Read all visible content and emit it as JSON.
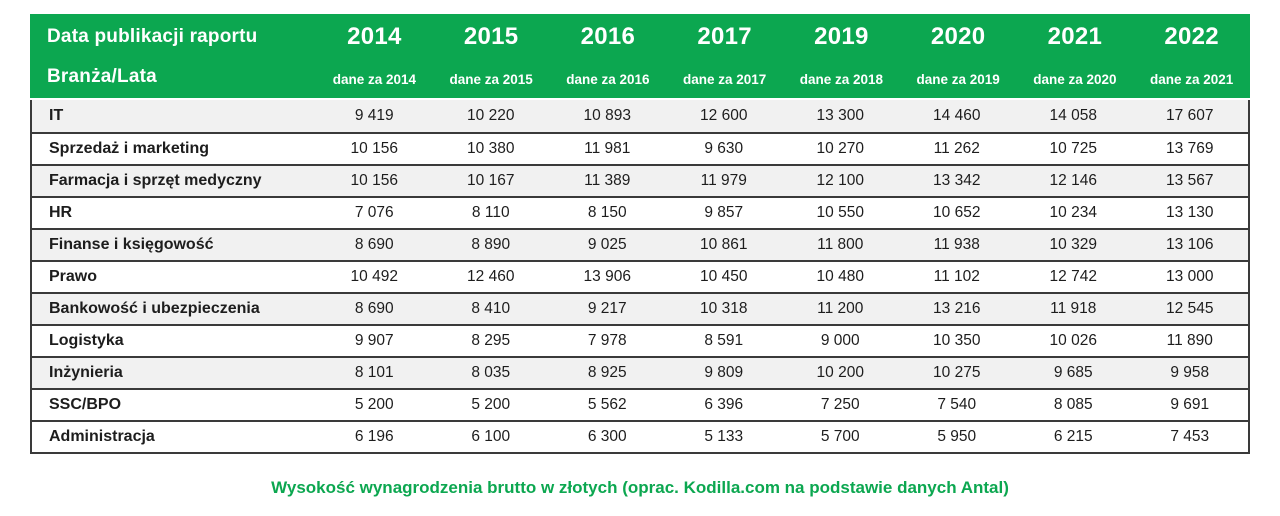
{
  "header": {
    "title_line1": "Data publikacji raportu",
    "title_line2": "Branża/Lata",
    "columns": [
      {
        "year": "2014",
        "subtitle": "dane za 2014"
      },
      {
        "year": "2015",
        "subtitle": "dane za 2015"
      },
      {
        "year": "2016",
        "subtitle": "dane za 2016"
      },
      {
        "year": "2017",
        "subtitle": "dane za 2017"
      },
      {
        "year": "2019",
        "subtitle": "dane za 2018"
      },
      {
        "year": "2020",
        "subtitle": "dane za 2019"
      },
      {
        "year": "2021",
        "subtitle": "dane za 2020"
      },
      {
        "year": "2022",
        "subtitle": "dane za 2021"
      }
    ]
  },
  "rows": [
    {
      "label": "IT",
      "values": [
        "9 419",
        "10 220",
        "10 893",
        "12 600",
        "13 300",
        "14 460",
        "14 058",
        "17 607"
      ]
    },
    {
      "label": "Sprzedaż i marketing",
      "values": [
        "10 156",
        "10 380",
        "11 981",
        "9 630",
        "10 270",
        "11 262",
        "10 725",
        "13 769"
      ]
    },
    {
      "label": "Farmacja i sprzęt medyczny",
      "values": [
        "10 156",
        "10 167",
        "11 389",
        "11 979",
        "12 100",
        "13 342",
        "12 146",
        "13 567"
      ]
    },
    {
      "label": "HR",
      "values": [
        "7 076",
        "8 110",
        "8 150",
        "9 857",
        "10 550",
        "10 652",
        "10 234",
        "13 130"
      ]
    },
    {
      "label": "Finanse i księgowość",
      "values": [
        "8 690",
        "8 890",
        "9 025",
        "10 861",
        "11 800",
        "11 938",
        "10 329",
        "13 106"
      ]
    },
    {
      "label": "Prawo",
      "values": [
        "10 492",
        "12 460",
        "13 906",
        "10 450",
        "10 480",
        "11 102",
        "12 742",
        "13 000"
      ]
    },
    {
      "label": "Bankowość i ubezpieczenia",
      "values": [
        "8 690",
        "8 410",
        "9 217",
        "10 318",
        "11 200",
        "13 216",
        "11 918",
        "12 545"
      ]
    },
    {
      "label": "Logistyka",
      "values": [
        "9 907",
        "8 295",
        "7 978",
        "8 591",
        "9 000",
        "10 350",
        "10 026",
        "11 890"
      ]
    },
    {
      "label": "Inżynieria",
      "values": [
        "8 101",
        "8 035",
        "8 925",
        "9 809",
        "10 200",
        "10 275",
        "9 685",
        "9 958"
      ]
    },
    {
      "label": "SSC/BPO",
      "values": [
        "5 200",
        "5 200",
        "5 562",
        "6 396",
        "7 250",
        "7 540",
        "8 085",
        "9 691"
      ]
    },
    {
      "label": "Administracja",
      "values": [
        "6 196",
        "6 100",
        "6 300",
        "5 133",
        "5 700",
        "5 950",
        "6 215",
        "7 453"
      ]
    }
  ],
  "caption": "Wysokość wynagrodzenia brutto w złotych (oprac. Kodilla.com na podstawie danych Antal)",
  "colors": {
    "brand_green": "#0CA750",
    "row_stripe": "#F1F1F1",
    "border_dark": "#3A3A3A",
    "header_text": "#FFFFFF"
  },
  "chart_data": {
    "type": "table",
    "title": "Wysokość wynagrodzenia brutto w złotych (oprac. Kodilla.com na podstawie danych Antal)",
    "corner_header": [
      "Data publikacji raportu",
      "Branża/Lata"
    ],
    "publication_years": [
      2014,
      2015,
      2016,
      2017,
      2019,
      2020,
      2021,
      2022
    ],
    "data_for_years": [
      2014,
      2015,
      2016,
      2017,
      2018,
      2019,
      2020,
      2021
    ],
    "series": [
      {
        "name": "IT",
        "values": [
          9419,
          10220,
          10893,
          12600,
          13300,
          14460,
          14058,
          17607
        ]
      },
      {
        "name": "Sprzedaż i marketing",
        "values": [
          10156,
          10380,
          11981,
          9630,
          10270,
          11262,
          10725,
          13769
        ]
      },
      {
        "name": "Farmacja i sprzęt medyczny",
        "values": [
          10156,
          10167,
          11389,
          11979,
          12100,
          13342,
          12146,
          13567
        ]
      },
      {
        "name": "HR",
        "values": [
          7076,
          8110,
          8150,
          9857,
          10550,
          10652,
          10234,
          13130
        ]
      },
      {
        "name": "Finanse i księgowość",
        "values": [
          8690,
          8890,
          9025,
          10861,
          11800,
          11938,
          10329,
          13106
        ]
      },
      {
        "name": "Prawo",
        "values": [
          10492,
          12460,
          13906,
          10450,
          10480,
          11102,
          12742,
          13000
        ]
      },
      {
        "name": "Bankowość i ubezpieczenia",
        "values": [
          8690,
          8410,
          9217,
          10318,
          11200,
          13216,
          11918,
          12545
        ]
      },
      {
        "name": "Logistyka",
        "values": [
          9907,
          8295,
          7978,
          8591,
          9000,
          10350,
          10026,
          11890
        ]
      },
      {
        "name": "Inżynieria",
        "values": [
          8101,
          8035,
          8925,
          9809,
          10200,
          10275,
          9685,
          9958
        ]
      },
      {
        "name": "SSC/BPO",
        "values": [
          5200,
          5200,
          5562,
          6396,
          7250,
          7540,
          8085,
          9691
        ]
      },
      {
        "name": "Administracja",
        "values": [
          6196,
          6100,
          6300,
          5133,
          5700,
          5950,
          6215,
          7453
        ]
      }
    ],
    "units": "PLN brutto / month"
  }
}
